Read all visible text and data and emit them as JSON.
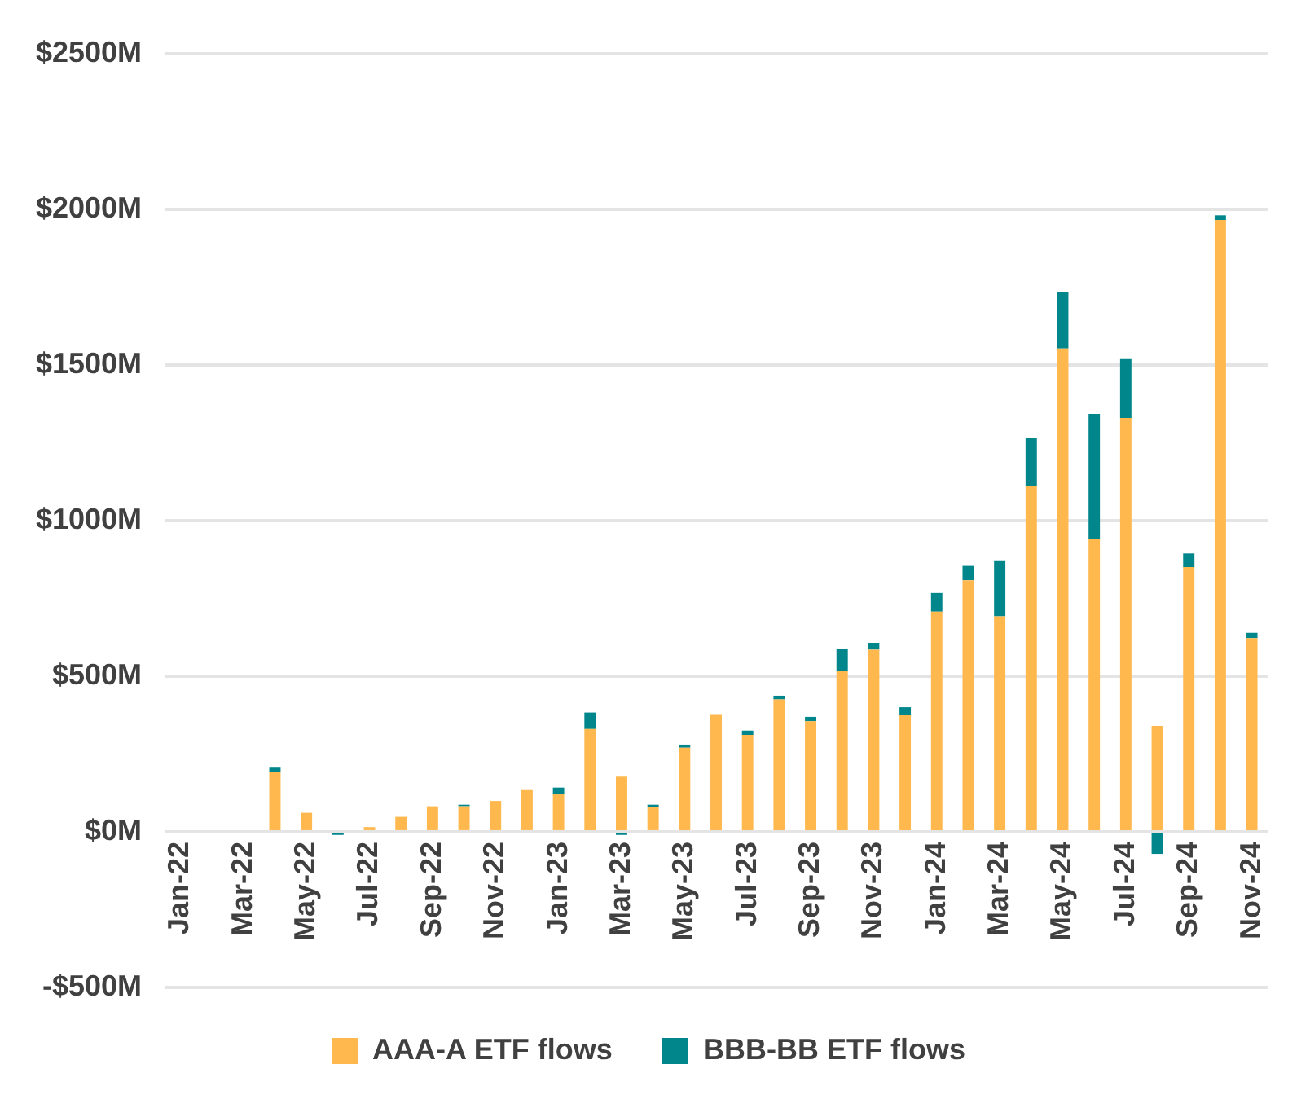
{
  "chart_data": {
    "type": "bar",
    "stacked": true,
    "categories": [
      "Jan-22",
      null,
      "Mar-22",
      null,
      "May-22",
      null,
      "Jul-22",
      null,
      "Sep-22",
      null,
      "Nov-22",
      null,
      "Jan-23",
      null,
      "Mar-23",
      null,
      "May-23",
      null,
      "Jul-23",
      null,
      "Sep-23",
      null,
      "Nov-23",
      null,
      "Jan-24",
      null,
      "Mar-24",
      null,
      "May-24",
      null,
      "Jul-24",
      null,
      "Sep-24",
      null,
      "Nov-24"
    ],
    "series": [
      {
        "name": "AAA-A ETF flows",
        "color": "#ffb84d",
        "values": [
          null,
          null,
          null,
          192,
          61,
          null,
          15,
          48,
          82,
          82,
          99,
          134,
          122,
          330,
          177,
          80,
          270,
          378,
          311,
          425,
          355,
          517,
          585,
          376,
          707,
          808,
          692,
          1110,
          1552,
          942,
          1329,
          340,
          850,
          1965,
          622
        ]
      },
      {
        "name": "BBB-BB ETF flows",
        "color": "#00868b",
        "values": [
          null,
          null,
          null,
          14,
          null,
          -10,
          null,
          null,
          null,
          5,
          null,
          null,
          20,
          53,
          -10,
          7,
          10,
          null,
          14,
          12,
          14,
          71,
          22,
          24,
          60,
          46,
          180,
          156,
          182,
          400,
          189,
          -71,
          44,
          15,
          17
        ]
      }
    ],
    "ylim": [
      -500,
      2500
    ],
    "yticks": [
      {
        "value": -500,
        "label": "-$500M"
      },
      {
        "value": 0,
        "label": "$0M"
      },
      {
        "value": 500,
        "label": "$500M"
      },
      {
        "value": 1000,
        "label": "$1000M"
      },
      {
        "value": 1500,
        "label": "$1500M"
      },
      {
        "value": 2000,
        "label": "$2000M"
      },
      {
        "value": 2500,
        "label": "$2500M"
      }
    ],
    "grid": "y",
    "legend": "bottom"
  }
}
